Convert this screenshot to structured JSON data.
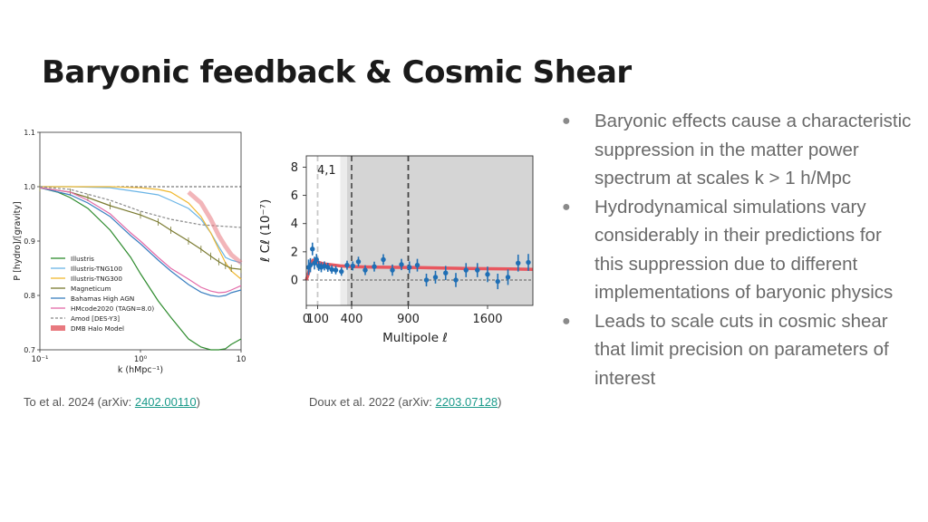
{
  "slide": {
    "title": "Baryonic feedback & Cosmic Shear",
    "captions": [
      {
        "prefix": "To et al. 2024 (arXiv: ",
        "link": "2402.00110",
        "suffix": ")"
      },
      {
        "prefix": "Doux et al. 2022 (arXiv: ",
        "link": "2203.07128",
        "suffix": ")"
      }
    ],
    "bullets": [
      "Baryonic effects cause a characteristic suppression in the matter power spectrum at scales k > 1 h/Mpc",
      "Hydrodynamical simulations vary considerably in their predictions for this suppression due to different implementations of baryonic physics",
      "Leads to scale cuts in cosmic shear that limit precision on parameters of interest"
    ],
    "bullet_glyph": "●"
  },
  "chart_data": [
    {
      "type": "line",
      "xlabel": "k (hMpc⁻¹)",
      "ylabel": "P [hydro]/[gravity]",
      "xscale": "log",
      "xlim": [
        0.1,
        10
      ],
      "ylim": [
        0.7,
        1.1
      ],
      "x_ticks": [
        "10⁻¹",
        "10⁰",
        "10"
      ],
      "y_ticks": [
        "0.7",
        "0.8",
        "0.9",
        "1.0",
        "1.1"
      ],
      "legend_placement": "lower-left",
      "reference_line": 1.0,
      "series": [
        {
          "name": "Illustris",
          "color": "#2e8b2e",
          "x": [
            0.1,
            0.15,
            0.2,
            0.3,
            0.5,
            0.8,
            1,
            1.5,
            2,
            3,
            4,
            5,
            6,
            7,
            8,
            10
          ],
          "y": [
            0.998,
            0.99,
            0.98,
            0.96,
            0.92,
            0.87,
            0.84,
            0.79,
            0.76,
            0.72,
            0.705,
            0.7,
            0.7,
            0.702,
            0.71,
            0.72
          ]
        },
        {
          "name": "Illustris-TNG100",
          "color": "#6ab4e6",
          "x": [
            0.1,
            0.2,
            0.5,
            1,
            1.5,
            2,
            3,
            4,
            5,
            6,
            7,
            8,
            10
          ],
          "y": [
            1.0,
            1.0,
            0.998,
            0.99,
            0.985,
            0.975,
            0.96,
            0.94,
            0.915,
            0.89,
            0.87,
            0.865,
            0.86
          ]
        },
        {
          "name": "Illustris-TNG300",
          "color": "#f0b830",
          "x": [
            0.1,
            0.2,
            0.5,
            1,
            1.5,
            2,
            3,
            4,
            5,
            6,
            7,
            8,
            10
          ],
          "y": [
            1.0,
            1.0,
            1.0,
            0.998,
            0.995,
            0.99,
            0.97,
            0.945,
            0.915,
            0.885,
            0.86,
            0.845,
            0.83
          ]
        },
        {
          "name": "Magneticum",
          "color": "#7a7a30",
          "x": [
            0.1,
            0.2,
            0.3,
            0.5,
            1,
            1.5,
            2,
            3,
            4,
            5,
            6,
            7,
            8,
            10
          ],
          "y": [
            0.998,
            0.99,
            0.98,
            0.965,
            0.948,
            0.935,
            0.92,
            0.9,
            0.885,
            0.872,
            0.862,
            0.855,
            0.85,
            0.848
          ]
        },
        {
          "name": "Bahamas High AGN",
          "color": "#3a7fc0",
          "x": [
            0.1,
            0.2,
            0.3,
            0.5,
            0.8,
            1,
            1.5,
            2,
            3,
            4,
            5,
            6,
            7,
            8,
            10
          ],
          "y": [
            0.998,
            0.985,
            0.97,
            0.945,
            0.91,
            0.895,
            0.865,
            0.845,
            0.82,
            0.806,
            0.8,
            0.798,
            0.8,
            0.805,
            0.81
          ]
        },
        {
          "name": "HMcode2020 (TAGN=8.0)",
          "color": "#e36aa8",
          "x": [
            0.1,
            0.2,
            0.3,
            0.5,
            0.8,
            1,
            1.5,
            2,
            3,
            4,
            5,
            6,
            7,
            8,
            10
          ],
          "y": [
            0.998,
            0.99,
            0.975,
            0.95,
            0.915,
            0.9,
            0.87,
            0.85,
            0.83,
            0.815,
            0.808,
            0.805,
            0.806,
            0.81,
            0.818
          ]
        },
        {
          "name": "Amod [DES-Y3]",
          "color": "#888888",
          "dash": true,
          "x": [
            0.1,
            0.2,
            0.5,
            1,
            2,
            4,
            10
          ],
          "y": [
            1.0,
            0.995,
            0.975,
            0.955,
            0.94,
            0.93,
            0.925
          ]
        },
        {
          "name": "DMB Halo Model",
          "color": "#e8797f",
          "band": true,
          "x": [
            3,
            4,
            5,
            6,
            7,
            8,
            10
          ],
          "y": [
            0.99,
            0.97,
            0.94,
            0.91,
            0.89,
            0.875,
            0.86
          ]
        }
      ]
    },
    {
      "type": "scatter",
      "panel_label": "4,1",
      "xlabel": "Multipole ℓ",
      "ylabel": "ℓ Cℓ (10⁻⁷)",
      "xlim": [
        0,
        2000
      ],
      "ylim": [
        -1.8,
        8.8
      ],
      "x_ticks": [
        0,
        100,
        400,
        900,
        1600
      ],
      "y_ticks": [
        0,
        2,
        4,
        6,
        8
      ],
      "vlines": [
        {
          "x": 100,
          "color": "#c8c8c8"
        },
        {
          "x": 400,
          "color": "#555555"
        },
        {
          "x": 900,
          "color": "#444444"
        }
      ],
      "shaded_regions": [
        {
          "from": 300,
          "to": 360,
          "color": "#ececec"
        },
        {
          "from": 360,
          "to": 2000,
          "color": "#d5d5d5"
        }
      ],
      "model_color": "#e8575f",
      "point_color": "#1f6fb5",
      "model": {
        "x": [
          0,
          20,
          40,
          60,
          80,
          110,
          150,
          200,
          300,
          400,
          600,
          800,
          1000,
          1200,
          1400,
          1600,
          1800,
          2000
        ],
        "y": [
          0.0,
          0.5,
          1.2,
          1.4,
          1.35,
          1.25,
          1.15,
          1.1,
          1.0,
          0.95,
          0.92,
          0.9,
          0.88,
          0.85,
          0.82,
          0.8,
          0.78,
          0.75
        ]
      },
      "points": [
        {
          "x": 20,
          "y": 0.9,
          "err": 0.55
        },
        {
          "x": 36,
          "y": 1.05,
          "err": 0.5
        },
        {
          "x": 54,
          "y": 2.2,
          "err": 0.45
        },
        {
          "x": 72,
          "y": 1.2,
          "err": 0.45
        },
        {
          "x": 90,
          "y": 1.45,
          "err": 0.4
        },
        {
          "x": 110,
          "y": 1.0,
          "err": 0.35
        },
        {
          "x": 132,
          "y": 0.9,
          "err": 0.35
        },
        {
          "x": 160,
          "y": 1.0,
          "err": 0.32
        },
        {
          "x": 190,
          "y": 0.9,
          "err": 0.32
        },
        {
          "x": 225,
          "y": 0.75,
          "err": 0.3
        },
        {
          "x": 260,
          "y": 0.7,
          "err": 0.3
        },
        {
          "x": 310,
          "y": 0.6,
          "err": 0.3
        },
        {
          "x": 360,
          "y": 1.05,
          "err": 0.32
        },
        {
          "x": 410,
          "y": 1.0,
          "err": 0.32
        },
        {
          "x": 460,
          "y": 1.3,
          "err": 0.35
        },
        {
          "x": 520,
          "y": 0.7,
          "err": 0.35
        },
        {
          "x": 600,
          "y": 0.95,
          "err": 0.35
        },
        {
          "x": 680,
          "y": 1.45,
          "err": 0.38
        },
        {
          "x": 760,
          "y": 0.7,
          "err": 0.4
        },
        {
          "x": 840,
          "y": 1.1,
          "err": 0.4
        },
        {
          "x": 910,
          "y": 0.9,
          "err": 0.42
        },
        {
          "x": 980,
          "y": 1.05,
          "err": 0.45
        },
        {
          "x": 1060,
          "y": 0.0,
          "err": 0.45
        },
        {
          "x": 1140,
          "y": 0.2,
          "err": 0.45
        },
        {
          "x": 1230,
          "y": 0.5,
          "err": 0.5
        },
        {
          "x": 1320,
          "y": 0.0,
          "err": 0.5
        },
        {
          "x": 1410,
          "y": 0.7,
          "err": 0.5
        },
        {
          "x": 1510,
          "y": 0.7,
          "err": 0.5
        },
        {
          "x": 1600,
          "y": 0.4,
          "err": 0.55
        },
        {
          "x": 1690,
          "y": -0.1,
          "err": 0.55
        },
        {
          "x": 1780,
          "y": 0.2,
          "err": 0.55
        },
        {
          "x": 1870,
          "y": 1.2,
          "err": 0.6
        },
        {
          "x": 1960,
          "y": 1.25,
          "err": 0.6
        }
      ]
    }
  ]
}
